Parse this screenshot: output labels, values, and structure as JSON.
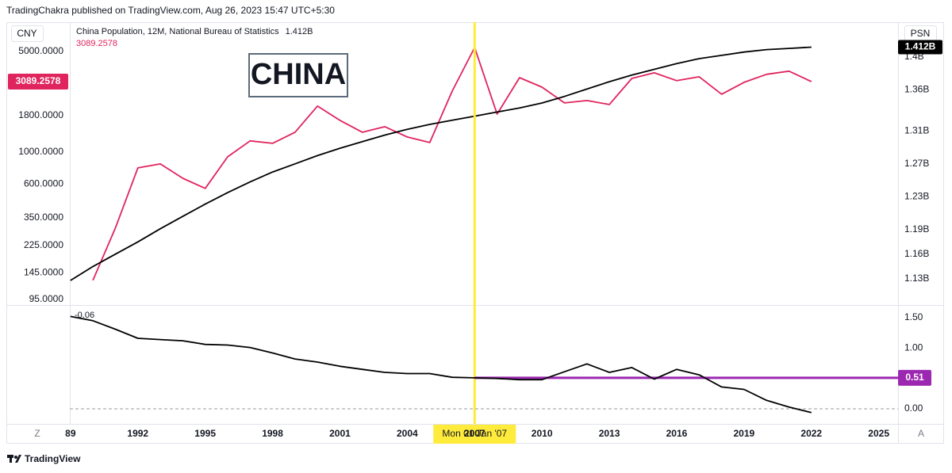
{
  "header": "TradingChakra published on TradingView.com, Aug 26, 2023 15:47 UTC+5:30",
  "footer": {
    "brand": "TradingView",
    "left_button": "Z",
    "right_button": "A"
  },
  "chart_data": [
    {
      "type": "line",
      "left_axis_name": "CNY",
      "right_axis_name": "PSN",
      "annotation": "CHINA",
      "log_scale": true,
      "x": [
        1989,
        1990,
        1991,
        1992,
        1993,
        1994,
        1995,
        1996,
        1997,
        1998,
        1999,
        2000,
        2001,
        2002,
        2003,
        2004,
        2005,
        2006,
        2007,
        2008,
        2009,
        2010,
        2011,
        2012,
        2013,
        2014,
        2015,
        2016,
        2017,
        2018,
        2019,
        2020,
        2021,
        2022
      ],
      "xlim": [
        1988.97,
        2025.86
      ],
      "ylim": [
        88,
        7980
      ],
      "yticks": [
        {
          "value": 5000,
          "label": "5000.0000"
        },
        {
          "value": 1800,
          "label": "1800.0000"
        },
        {
          "value": 1000,
          "label": "1000.0000"
        },
        {
          "value": 600,
          "label": "600.0000"
        },
        {
          "value": 350,
          "label": "350.0000"
        },
        {
          "value": 225,
          "label": "225.0000"
        },
        {
          "value": 145,
          "label": "145.0000"
        },
        {
          "value": 95,
          "label": "95.0000"
        }
      ],
      "y2lim": [
        1099100000,
        1442400000
      ],
      "y2ticks": [
        {
          "value": 1400000000,
          "label": "1.4B"
        },
        {
          "value": 1360000000,
          "label": "1.36B"
        },
        {
          "value": 1310000000,
          "label": "1.31B"
        },
        {
          "value": 1270000000,
          "label": "1.27B"
        },
        {
          "value": 1230000000,
          "label": "1.23B"
        },
        {
          "value": 1190000000,
          "label": "1.19B"
        },
        {
          "value": 1160000000,
          "label": "1.16B"
        },
        {
          "value": 1130000000,
          "label": "1.13B"
        }
      ],
      "crosshair": {
        "x": 2007,
        "label": "Mon 01 Jan '07",
        "color": "#ffeb3b"
      },
      "series": [
        {
          "color": "#e0245e",
          "values": [
            null,
            129,
            297,
            778,
            828,
            659,
            560,
            929,
            1197,
            1152,
            1374,
            2087,
            1663,
            1374,
            1502,
            1274,
            1166,
            2653,
            5325,
            1838,
            3288,
            2825,
            2196,
            2282,
            2141,
            3249,
            3555,
            3133,
            3336,
            2525,
            3053,
            3467,
            3648,
            3089.2578
          ]
        },
        {
          "name": "China Population, 12M, National Bureau of Statistics",
          "color": "#000000",
          "axis": "y2",
          "last_value_label": "1.412B",
          "values": [
            1128000000,
            1145000000,
            1160000000,
            1175000000,
            1191000000,
            1206000000,
            1221000000,
            1235000000,
            1248000000,
            1260000000,
            1270000000,
            1280000000,
            1289000000,
            1297000000,
            1305000000,
            1312000000,
            1318000000,
            1323000000,
            1328000000,
            1333000000,
            1338000000,
            1344000000,
            1352000000,
            1361000000,
            1370000000,
            1378000000,
            1385000000,
            1392000000,
            1398000000,
            1402000000,
            1406000000,
            1409000000,
            1410500000,
            1412000000
          ]
        }
      ]
    },
    {
      "type": "line",
      "x": [
        1989,
        1990,
        1991,
        1992,
        1993,
        1994,
        1995,
        1996,
        1997,
        1998,
        1999,
        2000,
        2001,
        2002,
        2003,
        2004,
        2005,
        2006,
        2007,
        2008,
        2009,
        2010,
        2011,
        2012,
        2013,
        2014,
        2015,
        2016,
        2017,
        2018,
        2019,
        2020,
        2021,
        2022
      ],
      "xlim": [
        1988.97,
        2025.86
      ],
      "xticks": [
        {
          "value": 1989,
          "label": "89"
        },
        1992,
        1995,
        1998,
        2001,
        2004,
        2007,
        2010,
        2013,
        2016,
        2019,
        2022,
        2025
      ],
      "ylim": [
        -0.247,
        1.695
      ],
      "yticks": [
        {
          "value": 1.5,
          "label": "1.50"
        },
        {
          "value": 1,
          "label": "1.00"
        },
        {
          "value": 0,
          "label": "0.00"
        }
      ],
      "zero_line": 0,
      "hline": {
        "value": 0.51,
        "label": "0.51",
        "from": 2007,
        "color": "#9c27b0"
      },
      "series": [
        {
          "color": "#000000",
          "values": [
            1.52,
            1.45,
            1.31,
            1.16,
            1.14,
            1.12,
            1.06,
            1.05,
            1.01,
            0.92,
            0.82,
            0.77,
            0.7,
            0.65,
            0.6,
            0.58,
            0.58,
            0.52,
            0.51,
            0.5,
            0.48,
            0.48,
            0.61,
            0.74,
            0.6,
            0.68,
            0.49,
            0.65,
            0.56,
            0.36,
            0.32,
            0.14,
            0.03,
            -0.06
          ]
        }
      ]
    }
  ]
}
